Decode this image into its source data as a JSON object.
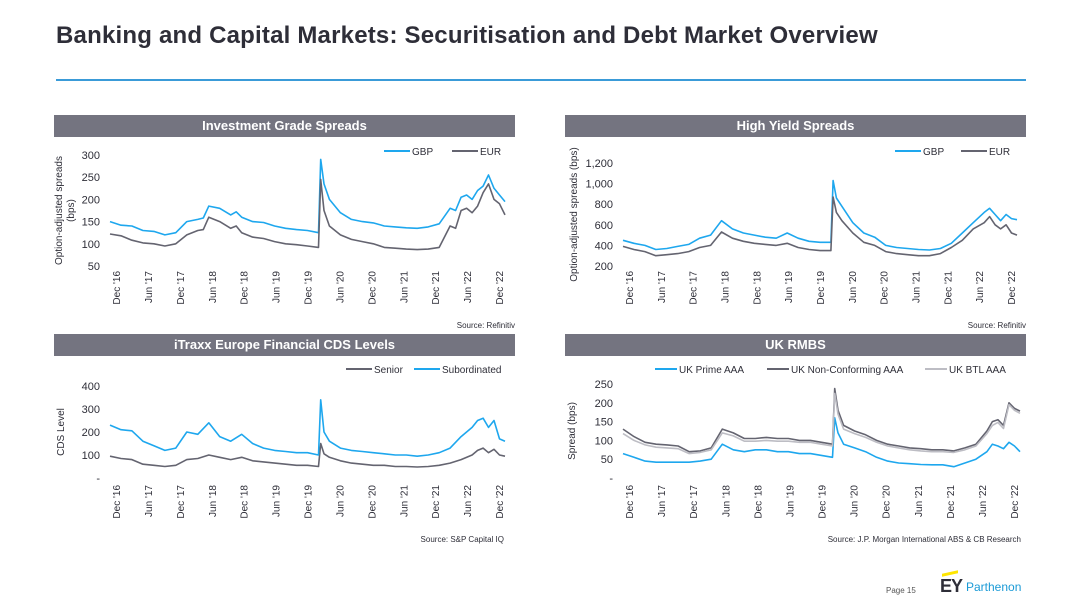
{
  "page": {
    "title": "Banking and Capital Markets: Securitisation and Debt Market Overview",
    "page_number": "Page 15",
    "logo_mark": "EY",
    "logo_text": "Parthenon"
  },
  "colors": {
    "blue": "#1ea7ee",
    "dark": "#646470",
    "light": "#bdbdc4",
    "header": "#747480",
    "rule": "#3a9bd8"
  },
  "chart_data": [
    {
      "id": "ig",
      "type": "line",
      "title": "Investment Grade Spreads",
      "ylabel": "Option-adjusted spreads (bps)",
      "ylim": [
        50,
        300
      ],
      "yticks": [
        50,
        100,
        150,
        200,
        250,
        300
      ],
      "ytick_labels": [
        "50",
        "100",
        "150",
        "200",
        "250",
        "300"
      ],
      "xlim": [
        0,
        72
      ],
      "xticks": [
        "Dec '16",
        "Jun '17",
        "Dec '17",
        "Jun '18",
        "Dec '18",
        "Jun '19",
        "Dec '19",
        "Jun '20",
        "Dec '20",
        "Jun '21",
        "Dec '21",
        "Jun '22",
        "Dec '22"
      ],
      "source": "Source: Refinitiv",
      "series": [
        {
          "name": "GBP",
          "color": "blue",
          "x": [
            0,
            2,
            4,
            6,
            8,
            10,
            12,
            14,
            16,
            17,
            18,
            20,
            22,
            23,
            24,
            26,
            28,
            30,
            32,
            34,
            36,
            38,
            38.4,
            39,
            40,
            42,
            44,
            46,
            48,
            50,
            52,
            54,
            56,
            58,
            60,
            62,
            63,
            64,
            65,
            66,
            67,
            68,
            69,
            70,
            71,
            72
          ],
          "y": [
            150,
            142,
            140,
            130,
            128,
            120,
            125,
            150,
            155,
            158,
            185,
            180,
            165,
            172,
            160,
            150,
            148,
            140,
            135,
            132,
            130,
            125,
            290,
            235,
            200,
            170,
            155,
            150,
            147,
            140,
            138,
            136,
            135,
            138,
            145,
            180,
            175,
            205,
            210,
            200,
            220,
            230,
            255,
            225,
            210,
            195
          ]
        },
        {
          "name": "EUR",
          "color": "dark",
          "x": [
            0,
            2,
            4,
            6,
            8,
            10,
            12,
            14,
            16,
            17,
            18,
            20,
            22,
            23,
            24,
            26,
            28,
            30,
            32,
            34,
            36,
            38,
            38.4,
            39,
            40,
            42,
            44,
            46,
            48,
            50,
            52,
            54,
            56,
            58,
            60,
            62,
            63,
            64,
            65,
            66,
            67,
            68,
            69,
            70,
            71,
            72
          ],
          "y": [
            122,
            118,
            108,
            102,
            100,
            95,
            100,
            120,
            130,
            132,
            160,
            150,
            135,
            140,
            125,
            115,
            112,
            105,
            100,
            98,
            95,
            92,
            245,
            175,
            140,
            120,
            110,
            105,
            100,
            92,
            90,
            88,
            87,
            88,
            92,
            140,
            135,
            175,
            180,
            170,
            185,
            215,
            235,
            200,
            190,
            165
          ]
        }
      ]
    },
    {
      "id": "hy",
      "type": "line",
      "title": "High Yield Spreads",
      "ylabel": "Option-adjusted spreads (bps)",
      "ylim": [
        200,
        1200
      ],
      "yticks": [
        200,
        400,
        600,
        800,
        1000,
        1200
      ],
      "ytick_labels": [
        "200",
        "400",
        "600",
        "800",
        "1,000",
        "1,200"
      ],
      "xlim": [
        0,
        72
      ],
      "xticks": [
        "Dec '16",
        "Jun '17",
        "Dec '17",
        "Jun '18",
        "Dec '18",
        "Jun '19",
        "Dec '19",
        "Jun '20",
        "Dec '20",
        "Jun '21",
        "Dec '21",
        "Jun '22",
        "Dec '22"
      ],
      "source": "Source: Refinitiv",
      "series": [
        {
          "name": "GBP",
          "color": "blue",
          "x": [
            0,
            2,
            4,
            6,
            8,
            10,
            12,
            14,
            16,
            18,
            20,
            22,
            24,
            26,
            28,
            30,
            32,
            34,
            36,
            38,
            38.4,
            39,
            40,
            42,
            44,
            46,
            48,
            50,
            52,
            54,
            56,
            58,
            60,
            62,
            64,
            66,
            67,
            68,
            69,
            70,
            71,
            72
          ],
          "y": [
            450,
            420,
            400,
            360,
            370,
            390,
            410,
            470,
            500,
            640,
            560,
            520,
            500,
            480,
            470,
            520,
            470,
            440,
            430,
            430,
            1030,
            860,
            780,
            620,
            520,
            480,
            400,
            380,
            370,
            360,
            355,
            370,
            420,
            520,
            620,
            720,
            760,
            700,
            640,
            700,
            660,
            650
          ]
        },
        {
          "name": "EUR",
          "color": "dark",
          "x": [
            0,
            2,
            4,
            6,
            8,
            10,
            12,
            14,
            16,
            18,
            20,
            22,
            24,
            26,
            28,
            30,
            32,
            34,
            36,
            38,
            38.4,
            39,
            40,
            42,
            44,
            46,
            48,
            50,
            52,
            54,
            56,
            58,
            60,
            62,
            64,
            66,
            67,
            68,
            69,
            70,
            71,
            72
          ],
          "y": [
            390,
            360,
            340,
            300,
            310,
            320,
            340,
            380,
            400,
            530,
            470,
            440,
            420,
            410,
            400,
            420,
            380,
            360,
            350,
            350,
            870,
            720,
            640,
            520,
            430,
            400,
            340,
            320,
            310,
            300,
            300,
            320,
            380,
            450,
            560,
            620,
            680,
            600,
            560,
            600,
            520,
            500
          ]
        }
      ]
    },
    {
      "id": "itraxx",
      "type": "line",
      "title": "iTraxx Europe Financial CDS Levels",
      "ylabel": "CDS Level",
      "ylim": [
        0,
        400
      ],
      "yticks": [
        0,
        100,
        200,
        300,
        400
      ],
      "ytick_labels": [
        "-",
        "100",
        "200",
        "300",
        "400"
      ],
      "xlim": [
        0,
        72
      ],
      "xticks": [
        "Dec '16",
        "Jun '17",
        "Dec '17",
        "Jun '18",
        "Dec '18",
        "Jun '19",
        "Dec '19",
        "Jun '20",
        "Dec '20",
        "Jun '21",
        "Dec '21",
        "Jun '22",
        "Dec '22"
      ],
      "source": "Source: S&P Capital IQ",
      "series": [
        {
          "name": "Senior",
          "color": "dark",
          "x": [
            0,
            2,
            4,
            6,
            8,
            10,
            12,
            14,
            16,
            18,
            20,
            22,
            24,
            26,
            28,
            30,
            32,
            34,
            36,
            38,
            38.4,
            39,
            40,
            42,
            44,
            46,
            48,
            50,
            52,
            54,
            56,
            58,
            60,
            62,
            64,
            66,
            67,
            68,
            69,
            70,
            71,
            72
          ],
          "y": [
            95,
            85,
            80,
            60,
            55,
            50,
            55,
            80,
            85,
            100,
            90,
            80,
            90,
            75,
            70,
            65,
            60,
            55,
            55,
            50,
            150,
            105,
            90,
            75,
            65,
            60,
            55,
            55,
            50,
            50,
            48,
            50,
            55,
            65,
            80,
            100,
            120,
            130,
            110,
            125,
            100,
            95
          ]
        },
        {
          "name": "Subordinated",
          "color": "blue",
          "x": [
            0,
            2,
            4,
            6,
            8,
            10,
            12,
            14,
            16,
            18,
            20,
            22,
            24,
            26,
            28,
            30,
            32,
            34,
            36,
            38,
            38.4,
            39,
            40,
            42,
            44,
            46,
            48,
            50,
            52,
            54,
            56,
            58,
            60,
            62,
            64,
            66,
            67,
            68,
            69,
            70,
            71,
            72
          ],
          "y": [
            230,
            210,
            205,
            160,
            140,
            120,
            130,
            200,
            190,
            240,
            180,
            160,
            190,
            150,
            130,
            120,
            115,
            110,
            110,
            100,
            340,
            200,
            160,
            130,
            120,
            115,
            110,
            105,
            100,
            100,
            95,
            100,
            110,
            130,
            180,
            220,
            250,
            260,
            220,
            250,
            170,
            160
          ]
        }
      ]
    },
    {
      "id": "rmbs",
      "type": "line",
      "title": "UK RMBS",
      "ylabel": "Spread (bps)",
      "ylim": [
        0,
        250
      ],
      "yticks": [
        0,
        50,
        100,
        150,
        200,
        250
      ],
      "ytick_labels": [
        "-",
        "50",
        "100",
        "150",
        "200",
        "250"
      ],
      "xlim": [
        0,
        72
      ],
      "xticks": [
        "Dec '16",
        "Jun '17",
        "Dec '17",
        "Jun '18",
        "Dec '18",
        "Jun '19",
        "Dec '19",
        "Jun '20",
        "Dec '20",
        "Jun '21",
        "Dec '21",
        "Jun '22",
        "Dec '22"
      ],
      "source": "Source: J.P. Morgan International ABS & CB Research",
      "series": [
        {
          "name": "UK Prime AAA",
          "color": "blue",
          "x": [
            0,
            2,
            4,
            6,
            8,
            10,
            12,
            14,
            16,
            18,
            20,
            22,
            24,
            26,
            28,
            30,
            32,
            34,
            36,
            38,
            38.4,
            39,
            40,
            42,
            44,
            46,
            48,
            50,
            52,
            54,
            56,
            58,
            60,
            62,
            64,
            66,
            67,
            68,
            69,
            70,
            71,
            72
          ],
          "y": [
            65,
            55,
            45,
            42,
            42,
            42,
            42,
            45,
            50,
            90,
            75,
            70,
            75,
            75,
            70,
            70,
            65,
            65,
            60,
            55,
            160,
            120,
            90,
            80,
            70,
            55,
            45,
            40,
            38,
            36,
            35,
            35,
            30,
            40,
            50,
            70,
            90,
            85,
            78,
            95,
            85,
            70
          ]
        },
        {
          "name": "UK Non-Conforming AAA",
          "color": "dark",
          "x": [
            0,
            2,
            4,
            6,
            8,
            10,
            12,
            14,
            16,
            18,
            20,
            22,
            24,
            26,
            28,
            30,
            32,
            34,
            36,
            38,
            38.4,
            39,
            40,
            42,
            44,
            46,
            48,
            50,
            52,
            54,
            56,
            58,
            60,
            62,
            64,
            66,
            67,
            68,
            69,
            70,
            71,
            72
          ],
          "y": [
            130,
            110,
            95,
            90,
            88,
            85,
            70,
            72,
            80,
            130,
            120,
            105,
            105,
            108,
            105,
            105,
            100,
            100,
            95,
            90,
            238,
            180,
            140,
            125,
            115,
            100,
            90,
            85,
            80,
            78,
            75,
            75,
            72,
            80,
            90,
            125,
            150,
            155,
            140,
            200,
            185,
            178
          ]
        },
        {
          "name": "UK BTL AAA",
          "color": "light",
          "x": [
            0,
            2,
            4,
            6,
            8,
            10,
            12,
            14,
            16,
            18,
            20,
            22,
            24,
            26,
            28,
            30,
            32,
            34,
            36,
            38,
            38.4,
            39,
            40,
            42,
            44,
            46,
            48,
            50,
            52,
            54,
            56,
            58,
            60,
            62,
            64,
            66,
            67,
            68,
            69,
            70,
            71,
            72
          ],
          "y": [
            118,
            100,
            88,
            82,
            80,
            78,
            65,
            68,
            75,
            120,
            112,
            98,
            98,
            100,
            98,
            98,
            95,
            95,
            90,
            85,
            225,
            170,
            130,
            118,
            108,
            95,
            85,
            80,
            75,
            72,
            70,
            70,
            68,
            75,
            85,
            118,
            140,
            148,
            132,
            195,
            180,
            172
          ]
        }
      ]
    }
  ]
}
